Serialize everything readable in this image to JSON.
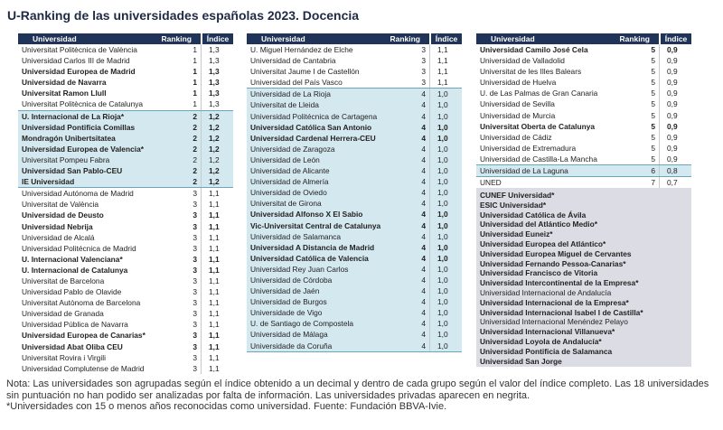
{
  "title": "U-Ranking de las universidades españolas 2023. Docencia",
  "tables": [
    {
      "headers": [
        "Universidad",
        "Ranking",
        "Índice"
      ],
      "rows": [
        {
          "name": "Universitat Politècnica de València",
          "rank": 1,
          "index": "1,3"
        },
        {
          "name": "Universidad Carlos III de Madrid",
          "rank": 1,
          "index": "1,3"
        },
        {
          "name": "Universidad Europea de Madrid",
          "rank": 1,
          "index": "1,3",
          "bold": true
        },
        {
          "name": "Universidad de Navarra",
          "rank": 1,
          "index": "1,3",
          "bold": true
        },
        {
          "name": "Universitat Ramon Llull",
          "rank": 1,
          "index": "1,3",
          "bold": true
        },
        {
          "name": "Universitat Politècnica de Catalunya",
          "rank": 1,
          "index": "1,3"
        },
        {
          "name": "U. Internacional de La Rioja*",
          "rank": 2,
          "index": "1,2",
          "bold": true,
          "shaded": true
        },
        {
          "name": "Universidad Pontificia Comillas",
          "rank": 2,
          "index": "1,2",
          "bold": true,
          "shaded": true
        },
        {
          "name": "Mondragón Unibertsitatea",
          "rank": 2,
          "index": "1,2",
          "bold": true,
          "shaded": true
        },
        {
          "name": "Universidad Europea de Valencia*",
          "rank": 2,
          "index": "1,2",
          "bold": true,
          "shaded": true
        },
        {
          "name": "Universitat Pompeu Fabra",
          "rank": 2,
          "index": "1,2",
          "shaded": true
        },
        {
          "name": "Universidad San Pablo-CEU",
          "rank": 2,
          "index": "1,2",
          "bold": true,
          "shaded": true
        },
        {
          "name": "IE Universidad",
          "rank": 2,
          "index": "1,2",
          "bold": true,
          "shaded": true
        },
        {
          "name": "Universidad Autónoma de Madrid",
          "rank": 3,
          "index": "1,1"
        },
        {
          "name": "Universitat de València",
          "rank": 3,
          "index": "1,1"
        },
        {
          "name": "Universidad de Deusto",
          "rank": 3,
          "index": "1,1",
          "bold": true
        },
        {
          "name": "Universidad Nebrija",
          "rank": 3,
          "index": "1,1",
          "bold": true
        },
        {
          "name": "Universidad de Alcalá",
          "rank": 3,
          "index": "1,1"
        },
        {
          "name": "Universidad Politécnica de Madrid",
          "rank": 3,
          "index": "1,1"
        },
        {
          "name": "U. Internacional Valenciana*",
          "rank": 3,
          "index": "1,1",
          "bold": true
        },
        {
          "name": "U. Internacional de Catalunya",
          "rank": 3,
          "index": "1,1",
          "bold": true
        },
        {
          "name": "Universitat de Barcelona",
          "rank": 3,
          "index": "1,1"
        },
        {
          "name": "Universidad Pablo de Olavide",
          "rank": 3,
          "index": "1,1"
        },
        {
          "name": "Universitat Autònoma de Barcelona",
          "rank": 3,
          "index": "1,1"
        },
        {
          "name": "Universidad de Granada",
          "rank": 3,
          "index": "1,1"
        },
        {
          "name": "Universidad Pública de Navarra",
          "rank": 3,
          "index": "1,1"
        },
        {
          "name": "Universidad Europea de Canarias*",
          "rank": 3,
          "index": "1,1",
          "bold": true
        },
        {
          "name": "Universidad Abat Oliba CEU",
          "rank": 3,
          "index": "1,1",
          "bold": true
        },
        {
          "name": "Universitat Rovira i Virgili",
          "rank": 3,
          "index": "1,1"
        },
        {
          "name": "Universidad Complutense de Madrid",
          "rank": 3,
          "index": "1,1"
        }
      ]
    },
    {
      "headers": [
        "Universidad",
        "Ranking",
        "Índice"
      ],
      "rows": [
        {
          "name": "U. Miguel Hernández de Elche",
          "rank": 3,
          "index": "1,1"
        },
        {
          "name": "Universidad de Cantabria",
          "rank": 3,
          "index": "1,1"
        },
        {
          "name": "Universitat Jaume I de Castellón",
          "rank": 3,
          "index": "1,1"
        },
        {
          "name": "Universidad del País Vasco",
          "rank": 3,
          "index": "1,1"
        },
        {
          "name": "Universidad de La Rioja",
          "rank": 4,
          "index": "1,0",
          "shaded": true
        },
        {
          "name": "Universitat de Lleida",
          "rank": 4,
          "index": "1,0",
          "shaded": true
        },
        {
          "name": "Universidad Politécnica de Cartagena",
          "rank": 4,
          "index": "1,0",
          "shaded": true
        },
        {
          "name": "Universidad Católica San Antonio",
          "rank": 4,
          "index": "1,0",
          "bold": true,
          "shaded": true
        },
        {
          "name": "Universidad Cardenal Herrera-CEU",
          "rank": 4,
          "index": "1,0",
          "bold": true,
          "shaded": true
        },
        {
          "name": "Universidad de Zaragoza",
          "rank": 4,
          "index": "1,0",
          "shaded": true
        },
        {
          "name": "Universidad de León",
          "rank": 4,
          "index": "1,0",
          "shaded": true
        },
        {
          "name": "Universidad de Alicante",
          "rank": 4,
          "index": "1,0",
          "shaded": true
        },
        {
          "name": "Universidad de Almería",
          "rank": 4,
          "index": "1,0",
          "shaded": true
        },
        {
          "name": "Universidad de Oviedo",
          "rank": 4,
          "index": "1,0",
          "shaded": true
        },
        {
          "name": "Universitat de Girona",
          "rank": 4,
          "index": "1,0",
          "shaded": true
        },
        {
          "name": "Universidad Alfonso X El Sabio",
          "rank": 4,
          "index": "1,0",
          "bold": true,
          "shaded": true
        },
        {
          "name": "Vic-Universitat Central de Catalunya",
          "rank": 4,
          "index": "1,0",
          "bold": true,
          "shaded": true
        },
        {
          "name": "Universidad de Salamanca",
          "rank": 4,
          "index": "1,0",
          "shaded": true
        },
        {
          "name": "Universidad A Distancia de Madrid",
          "rank": 4,
          "index": "1,0",
          "bold": true,
          "shaded": true
        },
        {
          "name": "Universidad Católica de Valencia",
          "rank": 4,
          "index": "1,0",
          "bold": true,
          "shaded": true
        },
        {
          "name": "Universidad Rey Juan Carlos",
          "rank": 4,
          "index": "1,0",
          "shaded": true
        },
        {
          "name": "Universidad de Córdoba",
          "rank": 4,
          "index": "1,0",
          "shaded": true
        },
        {
          "name": "Universidad de Jaén",
          "rank": 4,
          "index": "1,0",
          "shaded": true
        },
        {
          "name": "Universidad de Burgos",
          "rank": 4,
          "index": "1,0",
          "shaded": true
        },
        {
          "name": "Universidade de Vigo",
          "rank": 4,
          "index": "1,0",
          "shaded": true
        },
        {
          "name": "U. de Santiago de Compostela",
          "rank": 4,
          "index": "1,0",
          "shaded": true
        },
        {
          "name": "Universidad de Málaga",
          "rank": 4,
          "index": "1,0",
          "shaded": true
        },
        {
          "name": "Universidade da Coruña",
          "rank": 4,
          "index": "1,0",
          "shaded": true
        }
      ]
    },
    {
      "headers": [
        "Universidad",
        "Ranking",
        "Índice"
      ],
      "rows": [
        {
          "name": "Universidad Camilo José Cela",
          "rank": 5,
          "index": "0,9",
          "bold": true
        },
        {
          "name": "Universidad de Valladolid",
          "rank": 5,
          "index": "0,9"
        },
        {
          "name": "Universitat de les Illes Balears",
          "rank": 5,
          "index": "0,9"
        },
        {
          "name": "Universidad de Huelva",
          "rank": 5,
          "index": "0,9"
        },
        {
          "name": "U. de Las Palmas de Gran Canaria",
          "rank": 5,
          "index": "0,9"
        },
        {
          "name": "Universidad de Sevilla",
          "rank": 5,
          "index": "0,9"
        },
        {
          "name": "Universidad de Murcia",
          "rank": 5,
          "index": "0,9"
        },
        {
          "name": "Universitat Oberta de Catalunya",
          "rank": 5,
          "index": "0,9",
          "bold": true
        },
        {
          "name": "Universidad de Cádiz",
          "rank": 5,
          "index": "0,9"
        },
        {
          "name": "Universidad de Extremadura",
          "rank": 5,
          "index": "0,9"
        },
        {
          "name": "Universidad de Castilla-La Mancha",
          "rank": 5,
          "index": "0,9"
        },
        {
          "name": "Universidad de La Laguna",
          "rank": 6,
          "index": "0,8",
          "shaded": true
        },
        {
          "name": "UNED",
          "rank": 7,
          "index": "0,7"
        }
      ],
      "unranked": [
        {
          "name": "CUNEF Universidad*",
          "bold": true
        },
        {
          "name": "ESIC Universidad*",
          "bold": true
        },
        {
          "name": "Universidad Católica de Ávila",
          "bold": true
        },
        {
          "name": "Universidad del Atlántico Medio*",
          "bold": true
        },
        {
          "name": "Universidad Euneiz*",
          "bold": true
        },
        {
          "name": "Universidad Europea del Atlántico*",
          "bold": true
        },
        {
          "name": "Universidad Europea Miguel de Cervantes",
          "bold": true
        },
        {
          "name": "Universidad Fernando Pessoa-Canarias*",
          "bold": true
        },
        {
          "name": "Universidad Francisco de Vitoria",
          "bold": true
        },
        {
          "name": "Universidad Intercontinental de la Empresa*",
          "bold": true
        },
        {
          "name": "Universidad Internacional de Andalucía"
        },
        {
          "name": "Universidad Internacional de la Empresa*",
          "bold": true
        },
        {
          "name": "Universidad Internacional Isabel I de Castilla*",
          "bold": true
        },
        {
          "name": "Universidad Internacional Menéndez Pelayo"
        },
        {
          "name": "Universidad Internacional Villanueva*",
          "bold": true
        },
        {
          "name": "Universidad Loyola de Andalucía*",
          "bold": true
        },
        {
          "name": "Universidad Pontificia de Salamanca",
          "bold": true
        },
        {
          "name": "Universidad San Jorge",
          "bold": true
        }
      ]
    }
  ],
  "notes": [
    "Nota: Las universidades son agrupadas según el índice obtenido a un decimal y dentro de cada grupo según el valor del índice completo. Las 18 universidades sin puntuación no han podido ser analizadas por falta de información. Las universidades privadas aparecen en negrita.",
    "*Universidades con 15 o menos años reconocidas como universidad. Fuente: Fundación BBVA-Ivie."
  ]
}
